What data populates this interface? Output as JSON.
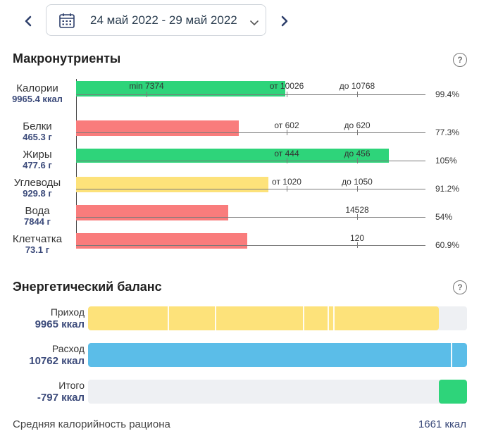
{
  "header": {
    "date_range": "24 май 2022 - 29 май 2022",
    "prev_icon": "chevron-left-icon",
    "next_icon": "chevron-right-icon",
    "calendar_icon": "calendar-icon",
    "dropdown_icon": "chevron-down-icon"
  },
  "macros": {
    "title": "Макронутриенты",
    "help": "?",
    "rows": [
      {
        "name": "Калории",
        "value": "9965.4 ккал",
        "percent": "99.4%",
        "fill_fraction": 0.994,
        "color": "#2ed47a",
        "marks": [
          {
            "text": "min 7374"
          },
          {
            "text": "от 10026"
          },
          {
            "text": "до 10768"
          }
        ]
      },
      {
        "name": "Белки",
        "value": "465.3 г",
        "percent": "77.3%",
        "fill_fraction": 0.773,
        "color": "#f97c7c",
        "marks": [
          {
            "text": "от 602"
          },
          {
            "text": "до 620"
          }
        ]
      },
      {
        "name": "Жиры",
        "value": "477.6 г",
        "percent": "105%",
        "fill_fraction": 1.05,
        "color": "#2ed47a",
        "marks": [
          {
            "text": "от 444"
          },
          {
            "text": "до 456"
          }
        ]
      },
      {
        "name": "Углеводы",
        "value": "929.8 г",
        "percent": "91.2%",
        "fill_fraction": 0.912,
        "color": "#fde27a",
        "marks": [
          {
            "text": "от 1020"
          },
          {
            "text": "до 1050"
          }
        ]
      },
      {
        "name": "Вода",
        "value": "7844 г",
        "percent": "54%",
        "fill_fraction": 0.54,
        "color": "#f97c7c",
        "marks": [
          {
            "text": "14528"
          }
        ]
      },
      {
        "name": "Клетчатка",
        "value": "73.1 г",
        "percent": "60.9%",
        "fill_fraction": 0.609,
        "color": "#f97c7c",
        "marks": [
          {
            "text": "120"
          }
        ]
      }
    ]
  },
  "energy": {
    "title": "Энергетический баланс",
    "help": "?",
    "rows": [
      {
        "name": "Приход",
        "value": "9965 ккал",
        "color": "#fde27a",
        "fill_fraction": 0.925
      },
      {
        "name": "Расход",
        "value": "10762 ккал",
        "color": "#5bbde8",
        "fill_fraction": 1.0
      },
      {
        "name": "Итого",
        "value": "-797 ккал",
        "color": "#2ed47a",
        "fill_fraction": 0.074
      }
    ]
  },
  "footer": {
    "label": "Средняя калорийность рациона",
    "value": "1661 ккал"
  }
}
